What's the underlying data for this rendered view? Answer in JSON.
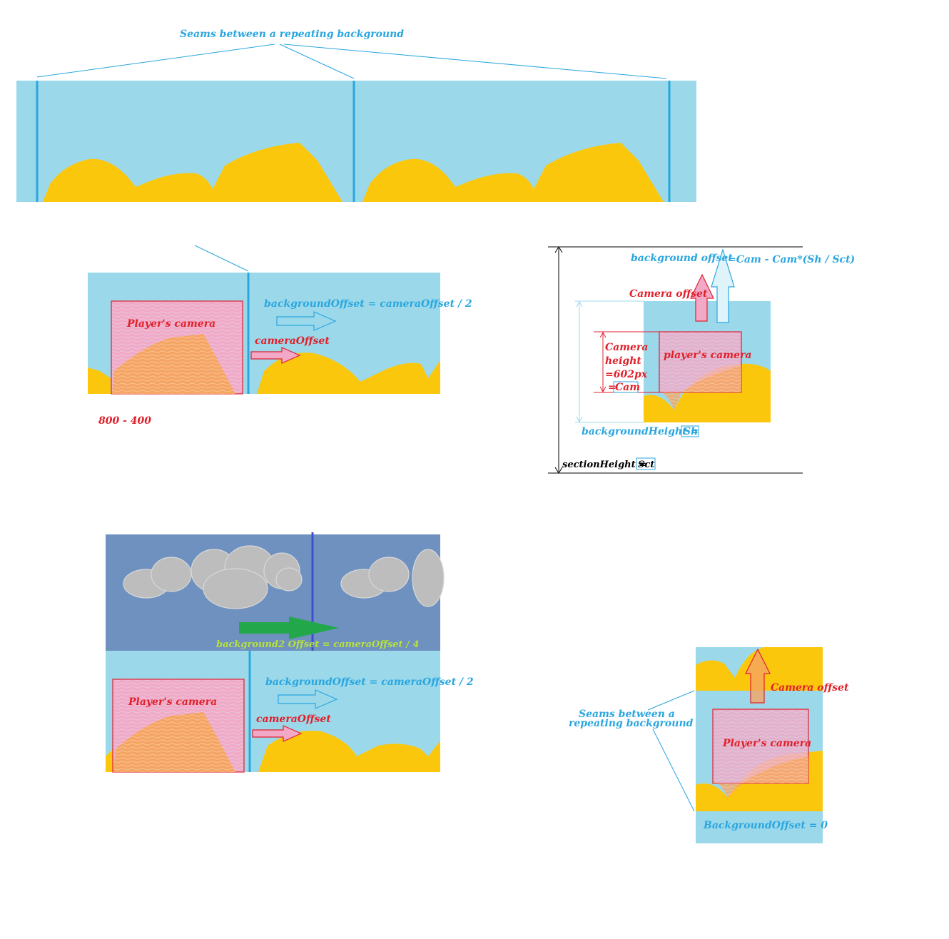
{
  "colors": {
    "sky": "#9bd9ea",
    "hill": "#fbc70c",
    "seam": "#2aa6df",
    "camera": "#e02030",
    "camera_fill": "#f2a9c7",
    "cloud_sky": "#6f91c0",
    "cloud": "#bdbdbd",
    "green_arrow": "#22a84a",
    "outline_blue": "#2aa6df"
  },
  "top": {
    "title": "Seams between a repeating background"
  },
  "middle": {
    "bg_offset_label": "backgroundOffset = cameraOffset / 2",
    "camera_offset_label": "cameraOffset",
    "player_camera_label": "Player's camera",
    "note": "800 - 400"
  },
  "right": {
    "bg_offset_label": "background offset",
    "formula": "=Cam - Cam*(Sh / Sct)",
    "camera_offset_label": "Camera offset",
    "camera_height_lines": [
      "Camera",
      "height",
      "=602px",
      "="
    ],
    "cam_box": "Cam",
    "player_camera_label": "player's camera",
    "bg_height_label": "backgroundHeight  =",
    "sh_box": "Sh",
    "section_height_label": "sectionHeight =",
    "sct_box": "Sct"
  },
  "bottom": {
    "bg2_label": "background2 Offset = cameraOffset / 4",
    "bg_offset_label": "backgroundOffset = cameraOffset / 2",
    "camera_offset_label": "cameraOffset",
    "player_camera_label": "Player's camera"
  },
  "br": {
    "camera_offset_label": "Camera offset",
    "seams_line1": "Seams between a",
    "seams_line2": "repeating background",
    "player_camera_label": "Player's camera",
    "bg_offset_label": "BackgroundOffset = 0"
  }
}
